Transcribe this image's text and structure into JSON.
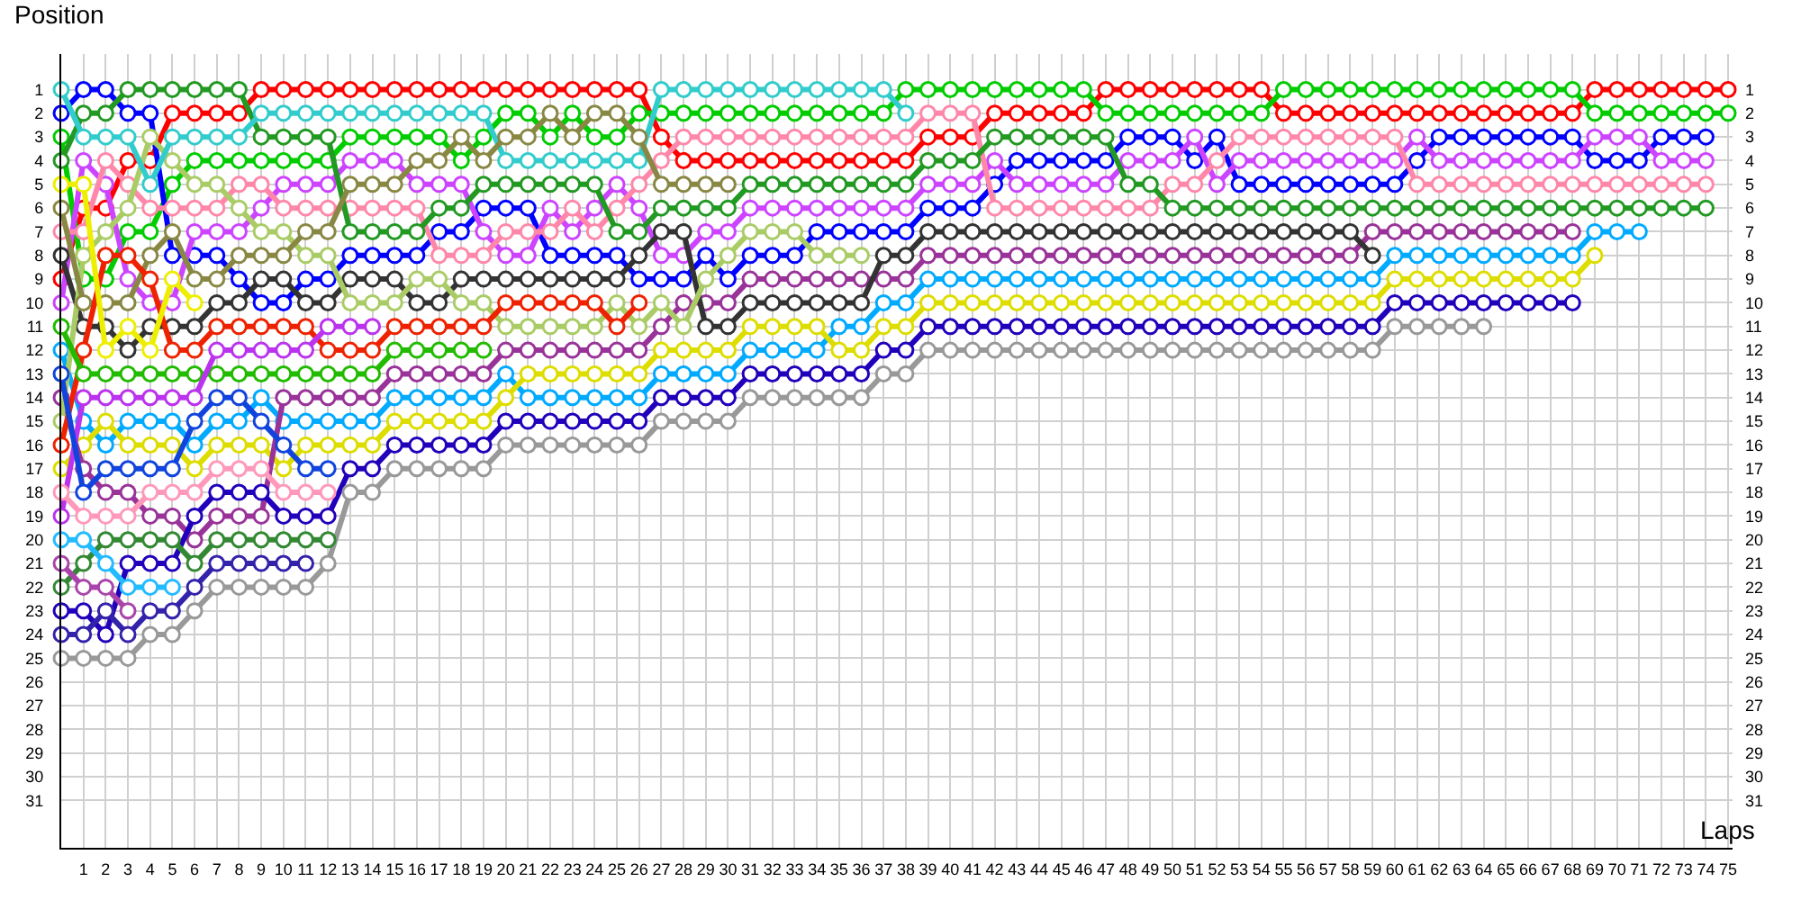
{
  "chart_data": {
    "type": "line",
    "ylabel": "Position",
    "xlabel": "Laps",
    "x": [
      0,
      1,
      2,
      3,
      4,
      5,
      6,
      7,
      8,
      9,
      10,
      11,
      12,
      13,
      14,
      15,
      16,
      17,
      18,
      19,
      20,
      21,
      22,
      23,
      24,
      25,
      26,
      27,
      28,
      29,
      30,
      31,
      32,
      33,
      34,
      35,
      36,
      37,
      38,
      39,
      40,
      41,
      42,
      43,
      44,
      45,
      46,
      47,
      48,
      49,
      50,
      51,
      52,
      53,
      54,
      55,
      56,
      57,
      58,
      59,
      60,
      61,
      62,
      63,
      64,
      65,
      66,
      67,
      68,
      69,
      70,
      71,
      72,
      73,
      74,
      75
    ],
    "xlim": [
      0,
      75.2
    ],
    "xticks": [
      1,
      2,
      3,
      4,
      5,
      6,
      7,
      8,
      9,
      10,
      11,
      12,
      13,
      14,
      15,
      16,
      17,
      18,
      19,
      20,
      21,
      22,
      23,
      24,
      25,
      26,
      27,
      28,
      29,
      30,
      31,
      32,
      33,
      34,
      35,
      36,
      37,
      38,
      39,
      40,
      41,
      42,
      43,
      44,
      45,
      46,
      47,
      48,
      49,
      50,
      51,
      52,
      53,
      54,
      55,
      56,
      57,
      58,
      59,
      60,
      61,
      62,
      63,
      64,
      65,
      66,
      67,
      68,
      69,
      70,
      71,
      72,
      73,
      74,
      75
    ],
    "ylim": [
      33,
      -0.5
    ],
    "yticks": [
      1,
      2,
      3,
      4,
      5,
      6,
      7,
      8,
      9,
      10,
      11,
      12,
      13,
      14,
      15,
      16,
      17,
      18,
      19,
      20,
      21,
      22,
      23,
      24,
      25,
      26,
      27,
      28,
      29,
      30,
      31
    ],
    "y2lim": [
      33,
      -0.5
    ],
    "y2ticks": [
      1,
      2,
      3,
      4,
      5,
      6,
      7,
      8,
      9,
      10,
      11,
      12,
      13,
      14,
      15,
      16,
      17,
      18,
      19,
      20,
      21,
      22,
      23,
      24,
      25,
      26,
      27,
      28,
      29,
      30,
      31
    ],
    "grid": true,
    "marker": "circle",
    "line_style": "solid",
    "series": [
      {
        "color": "#ff0000",
        "values": [
          9,
          6,
          6,
          4,
          4,
          2,
          2,
          2,
          2,
          1,
          1,
          1,
          1,
          1,
          1,
          1,
          1,
          1,
          1,
          1,
          1,
          1,
          1,
          1,
          1,
          1,
          1,
          3,
          4,
          4,
          4,
          4,
          4,
          4,
          4,
          4,
          4,
          4,
          4,
          3,
          3,
          3,
          2,
          2,
          2,
          2,
          2,
          1,
          1,
          1,
          1,
          1,
          1,
          1,
          1,
          2,
          2,
          2,
          2,
          2,
          2,
          2,
          2,
          2,
          2,
          2,
          2,
          2,
          2,
          1,
          1,
          1,
          1,
          1,
          1,
          1
        ]
      },
      {
        "color": "#00cc00",
        "values": [
          3,
          9,
          9,
          7,
          7,
          5,
          4,
          4,
          4,
          4,
          4,
          4,
          4,
          3,
          3,
          3,
          3,
          3,
          4,
          3,
          2,
          2,
          3,
          2,
          3,
          3,
          2,
          2,
          2,
          2,
          2,
          2,
          2,
          2,
          2,
          2,
          2,
          2,
          1,
          1,
          1,
          1,
          1,
          1,
          1,
          1,
          1,
          2,
          2,
          2,
          2,
          2,
          2,
          2,
          2,
          1,
          1,
          1,
          1,
          1,
          1,
          1,
          1,
          1,
          1,
          1,
          1,
          1,
          1,
          2,
          2,
          2,
          2,
          2,
          2,
          2
        ]
      },
      {
        "color": "#0000ff",
        "values": [
          2,
          1,
          1,
          2,
          2,
          8,
          8,
          8,
          9,
          10,
          10,
          9,
          9,
          8,
          8,
          8,
          8,
          7,
          7,
          6,
          6,
          6,
          8,
          8,
          8,
          8,
          9,
          9,
          9,
          8,
          9,
          8,
          8,
          8,
          7,
          7,
          7,
          7,
          7,
          6,
          6,
          6,
          5,
          4,
          4,
          4,
          4,
          4,
          3,
          3,
          3,
          4,
          3,
          5,
          5,
          5,
          5,
          5,
          5,
          5,
          5,
          4,
          3,
          3,
          3,
          3,
          3,
          3,
          3,
          4,
          4,
          4,
          3,
          3,
          3,
          null
        ]
      },
      {
        "color": "#cc44ff",
        "values": [
          10,
          4,
          5,
          9,
          10,
          10,
          7,
          7,
          7,
          6,
          5,
          5,
          5,
          4,
          4,
          4,
          5,
          5,
          5,
          7,
          8,
          8,
          6,
          7,
          6,
          5,
          6,
          8,
          8,
          7,
          7,
          6,
          6,
          6,
          6,
          6,
          6,
          6,
          6,
          5,
          5,
          5,
          4,
          5,
          5,
          5,
          5,
          5,
          4,
          4,
          4,
          3,
          5,
          4,
          4,
          4,
          4,
          4,
          4,
          4,
          4,
          3,
          4,
          4,
          4,
          4,
          4,
          4,
          4,
          3,
          3,
          3,
          4,
          4,
          4,
          null
        ]
      },
      {
        "color": "#ff88aa",
        "values": [
          7,
          7,
          4,
          5,
          6,
          6,
          6,
          6,
          5,
          5,
          6,
          6,
          6,
          6,
          6,
          6,
          6,
          8,
          8,
          8,
          7,
          7,
          7,
          6,
          7,
          6,
          5,
          4,
          3,
          3,
          3,
          3,
          3,
          3,
          3,
          3,
          3,
          3,
          3,
          2,
          2,
          2,
          6,
          6,
          6,
          6,
          6,
          6,
          6,
          6,
          5,
          5,
          4,
          3,
          3,
          3,
          3,
          3,
          3,
          3,
          3,
          5,
          5,
          5,
          5,
          5,
          5,
          5,
          5,
          5,
          5,
          5,
          5,
          5,
          5,
          null
        ]
      },
      {
        "color": "#229922",
        "values": [
          4,
          2,
          2,
          1,
          1,
          1,
          1,
          1,
          1,
          3,
          3,
          3,
          3,
          7,
          7,
          7,
          7,
          6,
          6,
          5,
          5,
          5,
          5,
          5,
          5,
          7,
          7,
          6,
          6,
          6,
          6,
          5,
          5,
          5,
          5,
          5,
          5,
          5,
          5,
          4,
          4,
          4,
          3,
          3,
          3,
          3,
          3,
          3,
          5,
          5,
          6,
          6,
          6,
          6,
          6,
          6,
          6,
          6,
          6,
          6,
          6,
          6,
          6,
          6,
          6,
          6,
          6,
          6,
          6,
          6,
          6,
          6,
          6,
          6,
          6,
          null
        ]
      },
      {
        "color": "#00aaff",
        "values": [
          12,
          15,
          16,
          15,
          15,
          15,
          16,
          15,
          15,
          14,
          15,
          15,
          15,
          15,
          15,
          14,
          14,
          14,
          14,
          14,
          13,
          14,
          14,
          14,
          14,
          14,
          14,
          13,
          13,
          13,
          13,
          12,
          12,
          12,
          12,
          11,
          11,
          10,
          10,
          9,
          9,
          9,
          9,
          9,
          9,
          9,
          9,
          9,
          9,
          9,
          9,
          9,
          9,
          9,
          9,
          9,
          9,
          9,
          9,
          9,
          8,
          8,
          8,
          8,
          8,
          8,
          8,
          8,
          8,
          7,
          7,
          7,
          null,
          null,
          null,
          null
        ]
      },
      {
        "color": "#dddd00",
        "values": [
          17,
          16,
          15,
          16,
          16,
          16,
          17,
          16,
          16,
          16,
          17,
          16,
          16,
          16,
          16,
          15,
          15,
          15,
          15,
          15,
          14,
          13,
          13,
          13,
          13,
          13,
          13,
          12,
          12,
          12,
          12,
          11,
          11,
          11,
          11,
          12,
          12,
          11,
          11,
          10,
          10,
          10,
          10,
          10,
          10,
          10,
          10,
          10,
          10,
          10,
          10,
          10,
          10,
          10,
          10,
          10,
          10,
          10,
          10,
          10,
          9,
          9,
          9,
          9,
          9,
          9,
          9,
          9,
          9,
          8,
          null,
          null,
          null,
          null,
          null,
          null
        ]
      },
      {
        "color": "#993399",
        "values": [
          14,
          17,
          18,
          18,
          19,
          19,
          20,
          19,
          19,
          19,
          14,
          14,
          14,
          14,
          14,
          13,
          13,
          13,
          13,
          13,
          12,
          12,
          12,
          12,
          12,
          12,
          12,
          11,
          10,
          10,
          10,
          9,
          9,
          9,
          9,
          9,
          9,
          9,
          9,
          8,
          8,
          8,
          8,
          8,
          8,
          8,
          8,
          8,
          8,
          8,
          8,
          8,
          8,
          8,
          8,
          8,
          8,
          8,
          8,
          7,
          7,
          7,
          7,
          7,
          7,
          7,
          7,
          7,
          7,
          null,
          null,
          null,
          null,
          null,
          null,
          null
        ]
      },
      {
        "color": "#2200bb",
        "values": [
          23,
          23,
          24,
          21,
          21,
          21,
          19,
          18,
          18,
          18,
          19,
          19,
          19,
          17,
          17,
          16,
          16,
          16,
          16,
          16,
          15,
          15,
          15,
          15,
          15,
          15,
          15,
          14,
          14,
          14,
          14,
          13,
          13,
          13,
          13,
          13,
          13,
          12,
          12,
          11,
          11,
          11,
          11,
          11,
          11,
          11,
          11,
          11,
          11,
          11,
          11,
          11,
          11,
          11,
          11,
          11,
          11,
          11,
          11,
          11,
          10,
          10,
          10,
          10,
          10,
          10,
          10,
          10,
          10,
          null,
          null,
          null,
          null,
          null,
          null,
          null
        ]
      },
      {
        "color": "#999999",
        "values": [
          25,
          25,
          25,
          25,
          24,
          24,
          23,
          22,
          22,
          22,
          22,
          22,
          21,
          18,
          18,
          17,
          17,
          17,
          17,
          17,
          16,
          16,
          16,
          16,
          16,
          16,
          16,
          15,
          15,
          15,
          15,
          14,
          14,
          14,
          14,
          14,
          14,
          13,
          13,
          12,
          12,
          12,
          12,
          12,
          12,
          12,
          12,
          12,
          12,
          12,
          12,
          12,
          12,
          12,
          12,
          12,
          12,
          12,
          12,
          12,
          11,
          11,
          11,
          11,
          11,
          null,
          null,
          null,
          null,
          null,
          null,
          null,
          null,
          null,
          null,
          null
        ]
      },
      {
        "color": "#333333",
        "values": [
          8,
          11,
          11,
          12,
          11,
          11,
          11,
          10,
          10,
          9,
          9,
          10,
          10,
          9,
          9,
          9,
          10,
          10,
          9,
          9,
          9,
          9,
          9,
          9,
          9,
          9,
          8,
          7,
          7,
          11,
          11,
          10,
          10,
          10,
          10,
          10,
          10,
          8,
          8,
          7,
          7,
          7,
          7,
          7,
          7,
          7,
          7,
          7,
          7,
          7,
          7,
          7,
          7,
          7,
          7,
          7,
          7,
          7,
          7,
          8,
          null,
          null,
          null,
          null,
          null,
          null,
          null,
          null,
          null,
          null,
          null,
          null,
          null,
          null,
          null,
          null
        ]
      },
      {
        "color": "#aacc66",
        "values": [
          15,
          8,
          7,
          6,
          3,
          4,
          5,
          5,
          6,
          7,
          7,
          8,
          8,
          10,
          10,
          10,
          9,
          9,
          10,
          10,
          11,
          11,
          11,
          11,
          11,
          10,
          11,
          10,
          11,
          9,
          8,
          7,
          7,
          7,
          8,
          8,
          8,
          null,
          null,
          null,
          null,
          null,
          null,
          null,
          null,
          null,
          null,
          null,
          null,
          null,
          null,
          null,
          null,
          null,
          null,
          null,
          null,
          null,
          null,
          null,
          null,
          null,
          null,
          null,
          null,
          null,
          null,
          null,
          null,
          null,
          null,
          null,
          null,
          null,
          null,
          null
        ]
      },
      {
        "color": "#33cccc",
        "values": [
          1,
          3,
          3,
          3,
          5,
          3,
          3,
          3,
          3,
          2,
          2,
          2,
          2,
          2,
          2,
          2,
          2,
          2,
          2,
          2,
          4,
          4,
          4,
          4,
          4,
          4,
          4,
          1,
          1,
          1,
          1,
          1,
          1,
          1,
          1,
          1,
          1,
          1,
          2,
          null,
          null,
          null,
          null,
          null,
          null,
          null,
          null,
          null,
          null,
          null,
          null,
          null,
          null,
          null,
          null,
          null,
          null,
          null,
          null,
          null,
          null,
          null,
          null,
          null,
          null,
          null,
          null,
          null,
          null,
          null,
          null,
          null,
          null,
          null,
          null,
          null
        ]
      },
      {
        "color": "#888844",
        "values": [
          6,
          10,
          10,
          10,
          8,
          7,
          9,
          9,
          8,
          8,
          8,
          7,
          7,
          5,
          5,
          5,
          4,
          4,
          3,
          4,
          3,
          3,
          2,
          3,
          2,
          2,
          3,
          5,
          5,
          5,
          5,
          null,
          null,
          null,
          null,
          null,
          null,
          null,
          null,
          null,
          null,
          null,
          null,
          null,
          null,
          null,
          null,
          null,
          null,
          null,
          null,
          null,
          null,
          null,
          null,
          null,
          null,
          null,
          null,
          null,
          null,
          null,
          null,
          null,
          null,
          null,
          null,
          null,
          null,
          null,
          null,
          null,
          null,
          null,
          null,
          null
        ]
      },
      {
        "color": "#ee2200",
        "values": [
          16,
          12,
          8,
          8,
          9,
          12,
          12,
          11,
          11,
          11,
          11,
          11,
          12,
          12,
          12,
          11,
          11,
          11,
          11,
          11,
          10,
          10,
          10,
          10,
          10,
          11,
          10,
          null,
          null,
          null,
          null,
          null,
          null,
          null,
          null,
          null,
          null,
          null,
          null,
          null,
          null,
          null,
          null,
          null,
          null,
          null,
          null,
          null,
          null,
          null,
          null,
          null,
          null,
          null,
          null,
          null,
          null,
          null,
          null,
          null,
          null,
          null,
          null,
          null,
          null,
          null,
          null,
          null,
          null,
          null,
          null,
          null,
          null,
          null,
          null,
          null
        ]
      },
      {
        "color": "#22bb00",
        "values": [
          11,
          13,
          13,
          13,
          13,
          13,
          13,
          13,
          13,
          13,
          13,
          13,
          13,
          13,
          13,
          12,
          12,
          12,
          12,
          12,
          null,
          null,
          null,
          null,
          null,
          null,
          null,
          null,
          null,
          null,
          null,
          null,
          null,
          null,
          null,
          null,
          null,
          null,
          null,
          null,
          null,
          null,
          null,
          null,
          null,
          null,
          null,
          null,
          null,
          null,
          null,
          null,
          null,
          null,
          null,
          null,
          null,
          null,
          null,
          null,
          null,
          null,
          null,
          null,
          null,
          null,
          null,
          null,
          null,
          null,
          null,
          null,
          null,
          null,
          null,
          null
        ]
      },
      {
        "color": "#bb33ee",
        "values": [
          19,
          14,
          14,
          14,
          14,
          14,
          14,
          12,
          12,
          12,
          12,
          12,
          11,
          11,
          11,
          null,
          null,
          null,
          null,
          null,
          null,
          null,
          null,
          null,
          null,
          null,
          null,
          null,
          null,
          null,
          null,
          null,
          null,
          null,
          null,
          null,
          null,
          null,
          null,
          null,
          null,
          null,
          null,
          null,
          null,
          null,
          null,
          null,
          null,
          null,
          null,
          null,
          null,
          null,
          null,
          null,
          null,
          null,
          null,
          null,
          null,
          null,
          null,
          null,
          null,
          null,
          null,
          null,
          null,
          null,
          null,
          null,
          null,
          null,
          null,
          null
        ]
      },
      {
        "color": "#1144dd",
        "values": [
          13,
          18,
          17,
          17,
          17,
          17,
          15,
          14,
          14,
          15,
          16,
          17,
          17,
          null,
          null,
          null,
          null,
          null,
          null,
          null,
          null,
          null,
          null,
          null,
          null,
          null,
          null,
          null,
          null,
          null,
          null,
          null,
          null,
          null,
          null,
          null,
          null,
          null,
          null,
          null,
          null,
          null,
          null,
          null,
          null,
          null,
          null,
          null,
          null,
          null,
          null,
          null,
          null,
          null,
          null,
          null,
          null,
          null,
          null,
          null,
          null,
          null,
          null,
          null,
          null,
          null,
          null,
          null,
          null,
          null,
          null,
          null,
          null,
          null,
          null,
          null
        ]
      },
      {
        "color": "#ff99bb",
        "values": [
          18,
          19,
          19,
          19,
          18,
          18,
          18,
          17,
          17,
          17,
          18,
          18,
          18,
          null,
          null,
          null,
          null,
          null,
          null,
          null,
          null,
          null,
          null,
          null,
          null,
          null,
          null,
          null,
          null,
          null,
          null,
          null,
          null,
          null,
          null,
          null,
          null,
          null,
          null,
          null,
          null,
          null,
          null,
          null,
          null,
          null,
          null,
          null,
          null,
          null,
          null,
          null,
          null,
          null,
          null,
          null,
          null,
          null,
          null,
          null,
          null,
          null,
          null,
          null,
          null,
          null,
          null,
          null,
          null,
          null,
          null,
          null,
          null,
          null,
          null,
          null
        ]
      },
      {
        "color": "#338833",
        "values": [
          22,
          21,
          20,
          20,
          20,
          20,
          21,
          20,
          20,
          20,
          20,
          20,
          20,
          null,
          null,
          null,
          null,
          null,
          null,
          null,
          null,
          null,
          null,
          null,
          null,
          null,
          null,
          null,
          null,
          null,
          null,
          null,
          null,
          null,
          null,
          null,
          null,
          null,
          null,
          null,
          null,
          null,
          null,
          null,
          null,
          null,
          null,
          null,
          null,
          null,
          null,
          null,
          null,
          null,
          null,
          null,
          null,
          null,
          null,
          null,
          null,
          null,
          null,
          null,
          null,
          null,
          null,
          null,
          null,
          null,
          null,
          null,
          null,
          null,
          null,
          null
        ]
      },
      {
        "color": "#3322aa",
        "values": [
          24,
          24,
          23,
          24,
          23,
          23,
          22,
          21,
          21,
          21,
          21,
          21,
          null,
          null,
          null,
          null,
          null,
          null,
          null,
          null,
          null,
          null,
          null,
          null,
          null,
          null,
          null,
          null,
          null,
          null,
          null,
          null,
          null,
          null,
          null,
          null,
          null,
          null,
          null,
          null,
          null,
          null,
          null,
          null,
          null,
          null,
          null,
          null,
          null,
          null,
          null,
          null,
          null,
          null,
          null,
          null,
          null,
          null,
          null,
          null,
          null,
          null,
          null,
          null,
          null,
          null,
          null,
          null,
          null,
          null,
          null,
          null,
          null,
          null,
          null,
          null
        ]
      },
      {
        "color": "#eeee00",
        "values": [
          5,
          5,
          12,
          11,
          12,
          9,
          10,
          null,
          null,
          null,
          null,
          null,
          null,
          null,
          null,
          null,
          null,
          null,
          null,
          null,
          null,
          null,
          null,
          null,
          null,
          null,
          null,
          null,
          null,
          null,
          null,
          null,
          null,
          null,
          null,
          null,
          null,
          null,
          null,
          null,
          null,
          null,
          null,
          null,
          null,
          null,
          null,
          null,
          null,
          null,
          null,
          null,
          null,
          null,
          null,
          null,
          null,
          null,
          null,
          null,
          null,
          null,
          null,
          null,
          null,
          null,
          null,
          null,
          null,
          null,
          null,
          null,
          null,
          null,
          null,
          null
        ]
      },
      {
        "color": "#22bbff",
        "values": [
          20,
          20,
          21,
          22,
          22,
          22,
          null,
          null,
          null,
          null,
          null,
          null,
          null,
          null,
          null,
          null,
          null,
          null,
          null,
          null,
          null,
          null,
          null,
          null,
          null,
          null,
          null,
          null,
          null,
          null,
          null,
          null,
          null,
          null,
          null,
          null,
          null,
          null,
          null,
          null,
          null,
          null,
          null,
          null,
          null,
          null,
          null,
          null,
          null,
          null,
          null,
          null,
          null,
          null,
          null,
          null,
          null,
          null,
          null,
          null,
          null,
          null,
          null,
          null,
          null,
          null,
          null,
          null,
          null,
          null,
          null,
          null,
          null,
          null,
          null,
          null
        ]
      },
      {
        "color": "#aa44aa",
        "values": [
          21,
          22,
          22,
          23,
          null,
          null,
          null,
          null,
          null,
          null,
          null,
          null,
          null,
          null,
          null,
          null,
          null,
          null,
          null,
          null,
          null,
          null,
          null,
          null,
          null,
          null,
          null,
          null,
          null,
          null,
          null,
          null,
          null,
          null,
          null,
          null,
          null,
          null,
          null,
          null,
          null,
          null,
          null,
          null,
          null,
          null,
          null,
          null,
          null,
          null,
          null,
          null,
          null,
          null,
          null,
          null,
          null,
          null,
          null,
          null,
          null,
          null,
          null,
          null,
          null,
          null,
          null,
          null,
          null,
          null,
          null,
          null,
          null,
          null,
          null,
          null
        ]
      }
    ]
  }
}
